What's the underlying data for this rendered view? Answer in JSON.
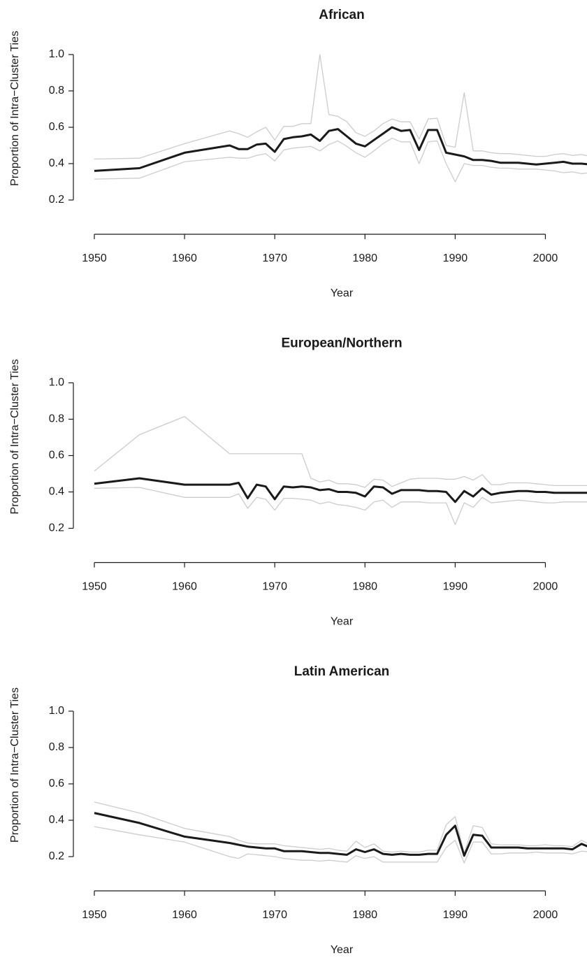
{
  "chart_data": [
    {
      "type": "line",
      "title": "African",
      "xlabel": "Year",
      "ylabel": "Proportion of Intra−Cluster Ties",
      "x": [
        1950,
        1955,
        1960,
        1965,
        1966,
        1967,
        1968,
        1969,
        1970,
        1971,
        1972,
        1973,
        1974,
        1975,
        1976,
        1977,
        1978,
        1979,
        1980,
        1981,
        1982,
        1983,
        1984,
        1985,
        1986,
        1987,
        1988,
        1989,
        1990,
        1991,
        1992,
        1993,
        1994,
        1995,
        1996,
        1997,
        1998,
        1999,
        2000,
        2001,
        2002,
        2003,
        2004,
        2005
      ],
      "xlim": [
        1950,
        2005
      ],
      "xticks": [
        1950,
        1960,
        1970,
        1980,
        1990,
        2000
      ],
      "ylim": [
        0,
        1
      ],
      "yticks": [
        0.2,
        0.4,
        0.6,
        0.8,
        {
          "value": 1,
          "label": "1.0"
        }
      ],
      "series": [
        {
          "color": "#cccccc",
          "width": 1.3,
          "values": [
            0.425,
            0.43,
            0.51,
            0.58,
            0.565,
            0.545,
            0.575,
            0.6,
            0.53,
            0.605,
            0.605,
            0.62,
            0.62,
            1.0,
            0.67,
            0.66,
            0.63,
            0.57,
            0.55,
            0.58,
            0.62,
            0.645,
            0.63,
            0.63,
            0.535,
            0.645,
            0.65,
            0.5,
            0.49,
            0.79,
            0.47,
            0.47,
            0.46,
            0.455,
            0.455,
            0.45,
            0.445,
            0.44,
            0.44,
            0.45,
            0.455,
            0.445,
            0.45,
            0.44
          ]
        },
        {
          "color": "#cccccc",
          "width": 1.3,
          "values": [
            0.315,
            0.32,
            0.41,
            0.435,
            0.43,
            0.43,
            0.445,
            0.455,
            0.415,
            0.475,
            0.485,
            0.49,
            0.495,
            0.47,
            0.505,
            0.525,
            0.495,
            0.46,
            0.435,
            0.47,
            0.51,
            0.54,
            0.52,
            0.52,
            0.4,
            0.52,
            0.525,
            0.4,
            0.3,
            0.4,
            0.39,
            0.39,
            0.38,
            0.375,
            0.375,
            0.37,
            0.37,
            0.37,
            0.365,
            0.36,
            0.35,
            0.355,
            0.345,
            0.35
          ]
        },
        {
          "color": "#1a1a1a",
          "width": 3,
          "values": [
            0.36,
            0.375,
            0.46,
            0.5,
            0.48,
            0.48,
            0.505,
            0.51,
            0.465,
            0.535,
            0.545,
            0.55,
            0.56,
            0.525,
            0.58,
            0.59,
            0.55,
            0.51,
            0.495,
            0.53,
            0.565,
            0.6,
            0.58,
            0.585,
            0.475,
            0.585,
            0.585,
            0.46,
            0.45,
            0.44,
            0.42,
            0.42,
            0.415,
            0.405,
            0.405,
            0.405,
            0.4,
            0.395,
            0.4,
            0.405,
            0.41,
            0.4,
            0.4,
            0.395
          ]
        }
      ]
    },
    {
      "type": "line",
      "title": "European/Northern",
      "xlabel": "Year",
      "ylabel": "Proportion of Intra−Cluster Ties",
      "x": [
        1950,
        1955,
        1960,
        1965,
        1966,
        1967,
        1968,
        1969,
        1970,
        1971,
        1972,
        1973,
        1974,
        1975,
        1976,
        1977,
        1978,
        1979,
        1980,
        1981,
        1982,
        1983,
        1984,
        1985,
        1986,
        1987,
        1988,
        1989,
        1990,
        1991,
        1992,
        1993,
        1994,
        1995,
        1996,
        1997,
        1998,
        1999,
        2000,
        2001,
        2002,
        2003,
        2004,
        2005
      ],
      "xlim": [
        1950,
        2005
      ],
      "xticks": [
        1950,
        1960,
        1970,
        1980,
        1990,
        2000
      ],
      "ylim": [
        0,
        1
      ],
      "yticks": [
        0.2,
        0.4,
        0.6,
        0.8,
        {
          "value": 1,
          "label": "1.0"
        }
      ],
      "series": [
        {
          "color": "#cccccc",
          "width": 1.3,
          "values": [
            0.515,
            0.715,
            0.815,
            0.61,
            0.61,
            0.61,
            0.61,
            0.61,
            0.61,
            0.61,
            0.61,
            0.61,
            0.475,
            0.455,
            0.465,
            0.445,
            0.445,
            0.44,
            0.425,
            0.47,
            0.465,
            0.43,
            0.45,
            0.47,
            0.475,
            0.475,
            0.475,
            0.47,
            0.47,
            0.485,
            0.465,
            0.495,
            0.44,
            0.44,
            0.45,
            0.45,
            0.45,
            0.445,
            0.44,
            0.435,
            0.435,
            0.435,
            0.435,
            0.435
          ]
        },
        {
          "color": "#cccccc",
          "width": 1.3,
          "values": [
            0.42,
            0.425,
            0.37,
            0.37,
            0.39,
            0.31,
            0.37,
            0.36,
            0.3,
            0.365,
            0.365,
            0.36,
            0.355,
            0.335,
            0.345,
            0.33,
            0.325,
            0.315,
            0.3,
            0.345,
            0.355,
            0.315,
            0.345,
            0.345,
            0.345,
            0.34,
            0.34,
            0.34,
            0.22,
            0.34,
            0.315,
            0.37,
            0.34,
            0.345,
            0.35,
            0.355,
            0.35,
            0.345,
            0.34,
            0.34,
            0.345,
            0.345,
            0.345,
            0.345
          ]
        },
        {
          "color": "#1a1a1a",
          "width": 3,
          "values": [
            0.445,
            0.475,
            0.44,
            0.44,
            0.45,
            0.365,
            0.44,
            0.43,
            0.36,
            0.43,
            0.425,
            0.43,
            0.425,
            0.41,
            0.415,
            0.4,
            0.4,
            0.395,
            0.375,
            0.43,
            0.425,
            0.39,
            0.41,
            0.41,
            0.41,
            0.405,
            0.405,
            0.4,
            0.345,
            0.405,
            0.375,
            0.42,
            0.385,
            0.395,
            0.4,
            0.405,
            0.405,
            0.4,
            0.4,
            0.395,
            0.395,
            0.395,
            0.395,
            0.395
          ]
        }
      ]
    },
    {
      "type": "line",
      "title": "Latin American",
      "xlabel": "Year",
      "ylabel": "Proportion of Intra−Cluster Ties",
      "x": [
        1950,
        1955,
        1960,
        1965,
        1966,
        1967,
        1968,
        1969,
        1970,
        1971,
        1972,
        1973,
        1974,
        1975,
        1976,
        1977,
        1978,
        1979,
        1980,
        1981,
        1982,
        1983,
        1984,
        1985,
        1986,
        1987,
        1988,
        1989,
        1990,
        1991,
        1992,
        1993,
        1994,
        1995,
        1996,
        1997,
        1998,
        1999,
        2000,
        2001,
        2002,
        2003,
        2004,
        2005
      ],
      "xlim": [
        1950,
        2005
      ],
      "xticks": [
        1950,
        1960,
        1970,
        1980,
        1990,
        2000
      ],
      "ylim": [
        0,
        1
      ],
      "yticks": [
        0.2,
        0.4,
        0.6,
        0.8,
        {
          "value": 1,
          "label": "1.0"
        }
      ],
      "series": [
        {
          "color": "#cccccc",
          "width": 1.3,
          "values": [
            0.5,
            0.44,
            0.355,
            0.31,
            0.29,
            0.275,
            0.27,
            0.27,
            0.27,
            0.26,
            0.255,
            0.25,
            0.245,
            0.24,
            0.245,
            0.235,
            0.23,
            0.285,
            0.25,
            0.27,
            0.23,
            0.225,
            0.23,
            0.225,
            0.225,
            0.235,
            0.235,
            0.375,
            0.42,
            0.22,
            0.37,
            0.36,
            0.27,
            0.265,
            0.265,
            0.265,
            0.26,
            0.26,
            0.265,
            0.26,
            0.26,
            0.255,
            0.29,
            0.265
          ]
        },
        {
          "color": "#cccccc",
          "width": 1.3,
          "values": [
            0.365,
            0.32,
            0.28,
            0.2,
            0.19,
            0.215,
            0.21,
            0.205,
            0.2,
            0.19,
            0.185,
            0.18,
            0.18,
            0.175,
            0.18,
            0.175,
            0.17,
            0.205,
            0.19,
            0.2,
            0.17,
            0.17,
            0.17,
            0.17,
            0.17,
            0.17,
            0.17,
            0.25,
            0.29,
            0.165,
            0.28,
            0.28,
            0.215,
            0.215,
            0.22,
            0.22,
            0.22,
            0.225,
            0.22,
            0.22,
            0.22,
            0.215,
            0.23,
            0.225
          ]
        },
        {
          "color": "#1a1a1a",
          "width": 3,
          "values": [
            0.44,
            0.385,
            0.31,
            0.275,
            0.265,
            0.255,
            0.25,
            0.245,
            0.245,
            0.23,
            0.23,
            0.23,
            0.225,
            0.22,
            0.22,
            0.215,
            0.21,
            0.24,
            0.225,
            0.24,
            0.215,
            0.21,
            0.215,
            0.21,
            0.21,
            0.215,
            0.215,
            0.32,
            0.37,
            0.205,
            0.32,
            0.315,
            0.25,
            0.25,
            0.25,
            0.25,
            0.245,
            0.245,
            0.245,
            0.245,
            0.245,
            0.24,
            0.27,
            0.25
          ]
        }
      ]
    }
  ]
}
